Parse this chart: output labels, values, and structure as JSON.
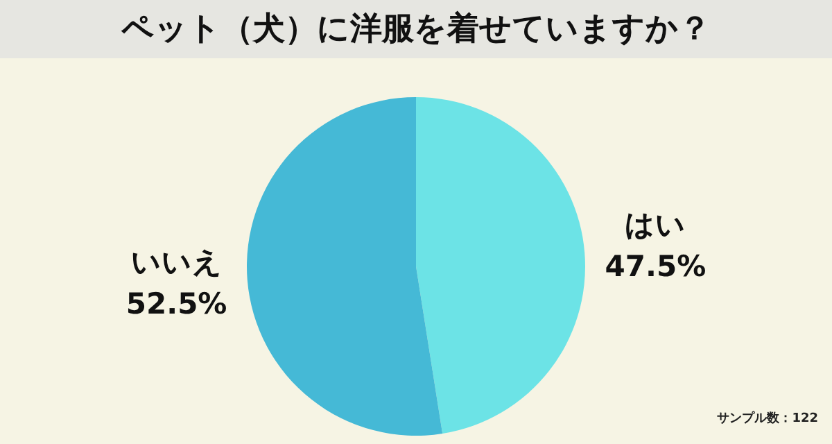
{
  "chart_data": {
    "type": "pie",
    "title": "ペット（犬）に洋服を着せていますか？",
    "categories": [
      "はい",
      "いいえ"
    ],
    "values": [
      47.5,
      52.5
    ],
    "colors": [
      "#6ce3e6",
      "#45b9d6"
    ],
    "value_labels": [
      "47.5%",
      "52.5%"
    ],
    "annotations": [
      "サンプル数：122"
    ]
  }
}
